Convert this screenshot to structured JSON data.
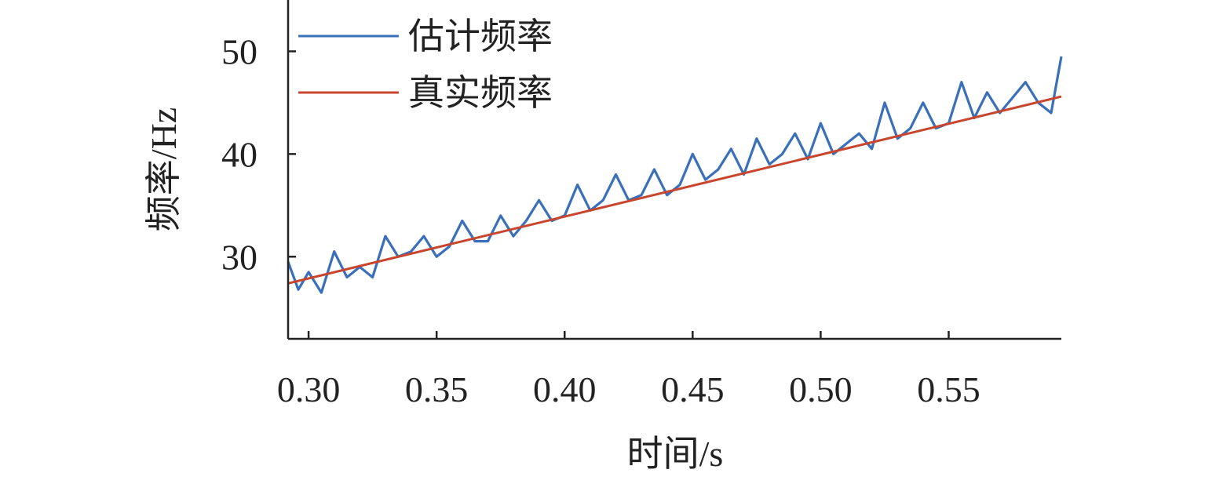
{
  "chart_data": {
    "type": "line",
    "xlabel": "时间/s",
    "ylabel": "频率/Hz",
    "xlim": [
      0.292,
      0.594
    ],
    "ylim": [
      22,
      55
    ],
    "xticks": [
      0.3,
      0.35,
      0.4,
      0.45,
      0.5,
      0.55
    ],
    "xtick_labels": [
      "0.30",
      "0.35",
      "0.40",
      "0.45",
      "0.50",
      "0.55"
    ],
    "yticks": [
      30,
      40,
      50
    ],
    "ytick_labels": [
      "30",
      "40",
      "50"
    ],
    "grid": false,
    "legend_position": "top-left",
    "series": [
      {
        "name": "估计频率",
        "color": "#3a6fba",
        "style": "noisy step trace around the true frequency",
        "x": [
          0.292,
          0.296,
          0.3,
          0.305,
          0.31,
          0.315,
          0.32,
          0.325,
          0.33,
          0.335,
          0.34,
          0.345,
          0.35,
          0.355,
          0.36,
          0.365,
          0.37,
          0.375,
          0.38,
          0.385,
          0.39,
          0.395,
          0.4,
          0.405,
          0.41,
          0.415,
          0.42,
          0.425,
          0.43,
          0.435,
          0.44,
          0.445,
          0.45,
          0.455,
          0.46,
          0.465,
          0.47,
          0.475,
          0.48,
          0.485,
          0.49,
          0.495,
          0.5,
          0.505,
          0.51,
          0.515,
          0.52,
          0.525,
          0.53,
          0.535,
          0.54,
          0.545,
          0.55,
          0.555,
          0.56,
          0.565,
          0.57,
          0.575,
          0.58,
          0.585,
          0.59,
          0.594
        ],
        "y": [
          29.5,
          26.8,
          28.5,
          26.5,
          30.5,
          28,
          29,
          28,
          32,
          30,
          30.5,
          32,
          30,
          31,
          33.5,
          31.5,
          31.5,
          34,
          32,
          33.5,
          35.5,
          33.5,
          34,
          37,
          34.5,
          35.5,
          38,
          35.5,
          36,
          38.5,
          36,
          37,
          40,
          37.5,
          38.5,
          40.5,
          38,
          41.5,
          39,
          40,
          42,
          39.5,
          43,
          40,
          41,
          42,
          40.5,
          45,
          41.5,
          42.5,
          45,
          42.5,
          43,
          47,
          43.5,
          46,
          44,
          45.5,
          47,
          45,
          44,
          49.5
        ]
      },
      {
        "name": "真实频率",
        "color": "#c8452e",
        "x": [
          0.292,
          0.594
        ],
        "y": [
          27.4,
          45.6
        ]
      }
    ]
  }
}
